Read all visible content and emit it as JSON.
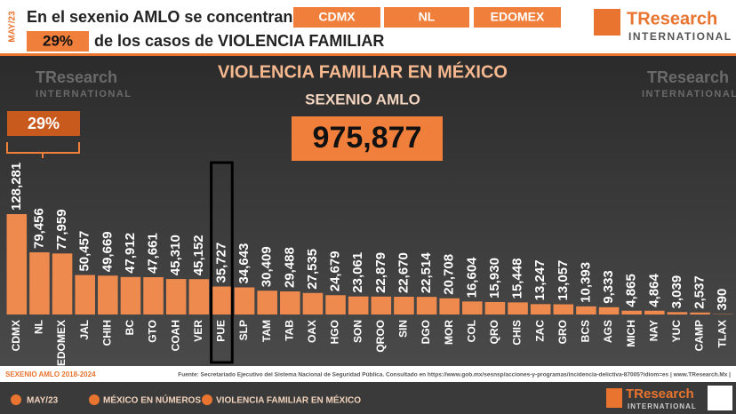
{
  "header": {
    "date": "MAY/23",
    "headline": "En el sexenio AMLO se concentran en",
    "states": [
      "CDMX",
      "NL",
      "EDOMEX"
    ],
    "share": "29%",
    "headline_end": "de los casos de VIOLENCIA FAMILIAR"
  },
  "logo": {
    "name": "TResearch",
    "tagline": "INTERNATIONAL"
  },
  "chart_data": {
    "type": "bar",
    "title": "VIOLENCIA FAMILIAR EN MÉXICO",
    "subtitle": "SEXENIO AMLO",
    "total_label": "975,877",
    "bracket_label": "29%",
    "color": "#ef8a4e",
    "categories": [
      "CDMX",
      "NL",
      "EDOMEX",
      "JAL",
      "CHIH",
      "BC",
      "GTO",
      "COAH",
      "VER",
      "PUE",
      "SLP",
      "TAM",
      "TAB",
      "OAX",
      "HGO",
      "SON",
      "QROO",
      "SIN",
      "DGO",
      "MOR",
      "COL",
      "QRO",
      "CHIS",
      "ZAC",
      "GRO",
      "BCS",
      "AGS",
      "MICH",
      "NAY",
      "YUC",
      "CAMP",
      "TLAX"
    ],
    "values": [
      128281,
      79456,
      77959,
      50457,
      49669,
      47912,
      47661,
      45310,
      45152,
      35727,
      34643,
      30409,
      29488,
      27535,
      24679,
      23061,
      22879,
      22670,
      22514,
      20708,
      16604,
      15930,
      15448,
      13247,
      13057,
      10393,
      9333,
      4865,
      4864,
      3039,
      2537,
      390
    ],
    "value_labels": [
      "128,281",
      "79,456",
      "77,959",
      "50,457",
      "49,669",
      "47,912",
      "47,661",
      "45,310",
      "45,152",
      "35,727",
      "34,643",
      "30,409",
      "29,488",
      "27,535",
      "24,679",
      "23,061",
      "22,879",
      "22,670",
      "22,514",
      "20,708",
      "16,604",
      "15,930",
      "15,448",
      "13,247",
      "13,057",
      "10,393",
      "9,333",
      "4,865",
      "4,864",
      "3,039",
      "2,537",
      "390"
    ]
  },
  "footer": {
    "period": "SEXENIO AMLO 2018-2024",
    "source": "Fuente: Secretariado Ejecutivo del Sistema Nacional de Seguridad Pública. Consultado en https://www.gob.mx/sesnsp/acciones-y-programas/incidencia-delictiva-87005?idiom=es | www.TResearch.Mx |",
    "date": "MAY/23",
    "section": "MÉXICO EN NÚMEROS",
    "topic": "VIOLENCIA FAMILIAR EN MÉXICO"
  }
}
